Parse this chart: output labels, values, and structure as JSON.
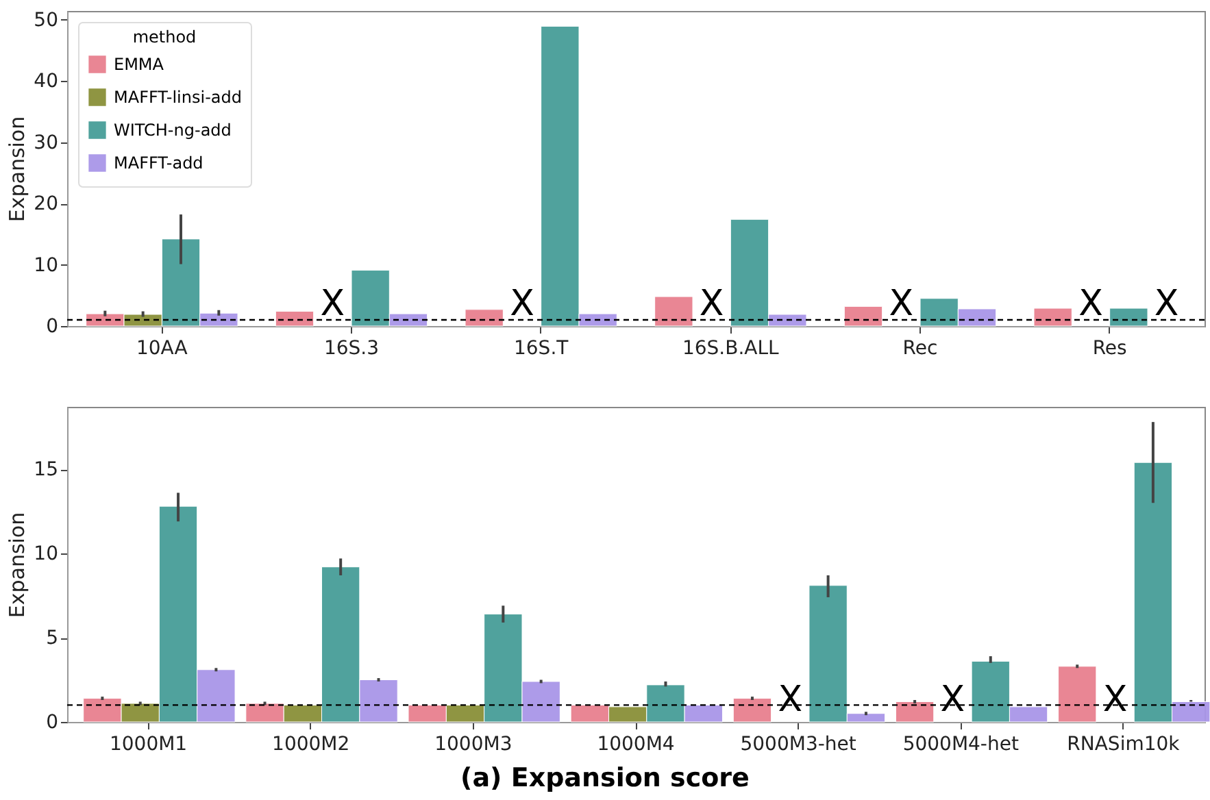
{
  "chart_data": [
    {
      "type": "bar",
      "ylabel": "Expansion",
      "legend_title": "method",
      "legend": "top left",
      "categories": [
        "10AA",
        "16S.3",
        "16S.T",
        "16S.B.ALL",
        "Rec",
        "Res"
      ],
      "ylim": [
        0,
        51.4
      ],
      "yticks": [
        0,
        10,
        20,
        30,
        40,
        50
      ],
      "series": [
        {
          "name": "EMMA",
          "color": "#e8808f",
          "values": [
            2.0,
            2.4,
            2.7,
            4.8,
            3.2,
            2.9
          ],
          "errors": [
            [
              1.6,
              2.5
            ],
            null,
            null,
            null,
            null,
            null
          ]
        },
        {
          "name": "MAFFT-linsi-add",
          "color": "#8a9038",
          "values": [
            1.9,
            null,
            null,
            null,
            null,
            null
          ],
          "errors": [
            [
              1.5,
              2.4
            ],
            null,
            null,
            null,
            null,
            null
          ]
        },
        {
          "name": "WITCH-ng-add",
          "color": "#479e98",
          "values": [
            14.2,
            9.1,
            48.9,
            17.4,
            4.5,
            2.9
          ],
          "errors": [
            [
              10.1,
              18.2
            ],
            null,
            null,
            null,
            null,
            null
          ]
        },
        {
          "name": "MAFFT-add",
          "color": "#a996e8",
          "values": [
            2.1,
            2.0,
            2.0,
            1.9,
            2.8,
            null
          ],
          "errors": [
            [
              1.7,
              2.6
            ],
            null,
            null,
            null,
            null,
            null
          ]
        }
      ],
      "ref_lines": [
        {
          "axis": "y",
          "value": 1,
          "line_style": "dashed",
          "color": "#000000"
        }
      ],
      "annotations": [
        "X",
        "X",
        "X",
        "X",
        "X",
        "X"
      ]
    },
    {
      "type": "bar",
      "ylabel": "Expansion",
      "categories": [
        "1000M1",
        "1000M2",
        "1000M3",
        "1000M4",
        "5000M3-het",
        "5000M4-het",
        "RNASim10k"
      ],
      "ylim": [
        0,
        18.7
      ],
      "yticks": [
        0,
        5,
        10,
        15
      ],
      "series": [
        {
          "name": "EMMA",
          "color": "#e8808f",
          "values": [
            1.4,
            1.1,
            1.0,
            1.0,
            1.4,
            1.2,
            3.3
          ],
          "errors": [
            [
              1.3,
              1.5
            ],
            [
              1.0,
              1.2
            ],
            null,
            null,
            [
              1.3,
              1.5
            ],
            [
              1.1,
              1.3
            ],
            [
              3.2,
              3.4
            ]
          ]
        },
        {
          "name": "MAFFT-linsi-add",
          "color": "#8a9038",
          "values": [
            1.1,
            1.0,
            1.0,
            0.9,
            null,
            null,
            null
          ],
          "errors": [
            [
              1.0,
              1.2
            ],
            null,
            null,
            null,
            null,
            null,
            null
          ]
        },
        {
          "name": "WITCH-ng-add",
          "color": "#479e98",
          "values": [
            12.8,
            9.2,
            6.4,
            2.2,
            8.1,
            3.6,
            15.4
          ],
          "errors": [
            [
              11.9,
              13.6
            ],
            [
              8.7,
              9.7
            ],
            [
              5.9,
              6.9
            ],
            [
              2.1,
              2.4
            ],
            [
              7.4,
              8.7
            ],
            [
              3.5,
              3.9
            ],
            [
              13.0,
              17.8
            ]
          ]
        },
        {
          "name": "MAFFT-add",
          "color": "#a996e8",
          "values": [
            3.1,
            2.5,
            2.4,
            1.0,
            0.5,
            0.9,
            1.2
          ],
          "errors": [
            [
              3.0,
              3.2
            ],
            [
              2.4,
              2.6
            ],
            [
              2.3,
              2.5
            ],
            null,
            [
              0.4,
              0.6
            ],
            null,
            [
              1.2,
              1.3
            ]
          ]
        }
      ],
      "ref_lines": [
        {
          "axis": "y",
          "value": 1,
          "line_style": "dashed",
          "color": "#000000"
        }
      ],
      "annotations": [
        "X",
        "X",
        "X",
        "(a) Expansion score"
      ]
    }
  ]
}
